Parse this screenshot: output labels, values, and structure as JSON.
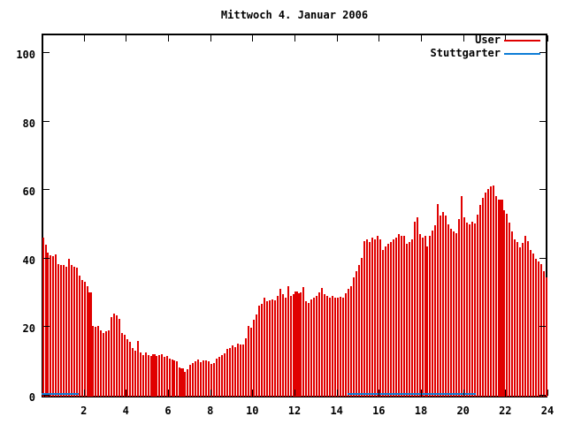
{
  "title": "Mittwoch 4. Januar 2006",
  "colors": {
    "background": "#ffffff",
    "axis": "#000000",
    "user_red": "#e00000",
    "stuttgarter_blue": "#0d7cd6"
  },
  "legend": {
    "position": "top-right-inside",
    "user_label": "User",
    "stuttgarter_label": "Stuttgarter"
  },
  "chart_data": {
    "type": "bar",
    "title": "Mittwoch 4. Januar 2006",
    "xlabel": "",
    "ylabel": "",
    "xlim": [
      0,
      24
    ],
    "ylim": [
      0,
      106
    ],
    "grid": false,
    "x_ticks": [
      2,
      4,
      6,
      8,
      10,
      12,
      14,
      16,
      18,
      20,
      22,
      24
    ],
    "y_ticks": [
      0,
      20,
      40,
      60,
      80,
      100
    ],
    "series": [
      {
        "name": "User",
        "style": "impulses",
        "color": "#e00000",
        "x_start_h": 0.0625,
        "x_step_h": 0.125,
        "values": [
          46.5,
          44.3,
          42.1,
          41.3,
          41.0,
          41.5,
          38.7,
          38.3,
          38.5,
          38.0,
          40.2,
          38.3,
          38.0,
          37.7,
          35.3,
          34.0,
          33.5,
          32.3,
          30.5,
          20.6,
          20.3,
          20.6,
          19.4,
          18.5,
          19.0,
          19.4,
          23.2,
          24.3,
          23.6,
          22.6,
          18.6,
          18.0,
          16.8,
          16.0,
          14.3,
          13.5,
          16.3,
          13.0,
          12.1,
          12.9,
          12.1,
          11.8,
          12.3,
          11.9,
          12.1,
          12.5,
          11.6,
          11.9,
          11.1,
          10.8,
          10.6,
          10.3,
          8.5,
          8.2,
          7.2,
          8.0,
          9.3,
          9.8,
          10.3,
          10.8,
          10.1,
          10.5,
          10.5,
          10.3,
          9.5,
          9.8,
          11.0,
          11.6,
          12.1,
          12.7,
          14.0,
          14.3,
          15.0,
          14.5,
          15.5,
          15.2,
          15.2,
          17.1,
          20.6,
          20.2,
          22.5,
          24.1,
          26.5,
          27.0,
          28.9,
          27.8,
          28.0,
          28.3,
          28.1,
          29.3,
          31.4,
          29.8,
          28.9,
          32.3,
          29.4,
          29.8,
          30.6,
          30.2,
          30.4,
          32.0,
          27.8,
          27.4,
          28.3,
          28.9,
          29.5,
          30.5,
          31.8,
          30.0,
          29.5,
          29.0,
          29.3,
          29.0,
          28.9,
          29.2,
          29.0,
          30.2,
          31.5,
          32.3,
          34.8,
          36.6,
          38.5,
          40.5,
          45.5,
          46.0,
          45.0,
          46.5,
          46.0,
          47.0,
          45.8,
          42.8,
          43.9,
          44.5,
          45.2,
          46.0,
          46.5,
          47.5,
          46.8,
          47.0,
          44.5,
          45.2,
          45.8,
          51.0,
          52.4,
          47.5,
          46.5,
          46.9,
          43.9,
          47.0,
          48.5,
          50.0,
          56.3,
          52.8,
          53.9,
          52.9,
          50.3,
          49.0,
          48.2,
          47.7,
          51.8,
          58.6,
          52.4,
          50.8,
          50.3,
          51.0,
          50.5,
          53.0,
          56.0,
          58.0,
          59.5,
          60.6,
          61.3,
          61.7,
          58.5,
          57.5,
          57.5,
          54.5,
          53.3,
          50.8,
          48.2,
          45.8,
          45.2,
          43.6,
          44.9,
          46.9,
          45.5,
          42.8,
          41.8,
          40.2,
          39.5,
          38.7,
          36.5,
          34.8
        ],
        "wide_bar_indices": [
          18,
          42,
          53,
          96,
          174
        ]
      },
      {
        "name": "Stuttgarter",
        "style": "line",
        "color": "#0d7cd6",
        "value": 0.8,
        "segments_h": [
          [
            0.0,
            1.75
          ],
          [
            14.5,
            20.6
          ]
        ]
      }
    ],
    "legend_entries": [
      "User",
      "Stuttgarter"
    ]
  }
}
